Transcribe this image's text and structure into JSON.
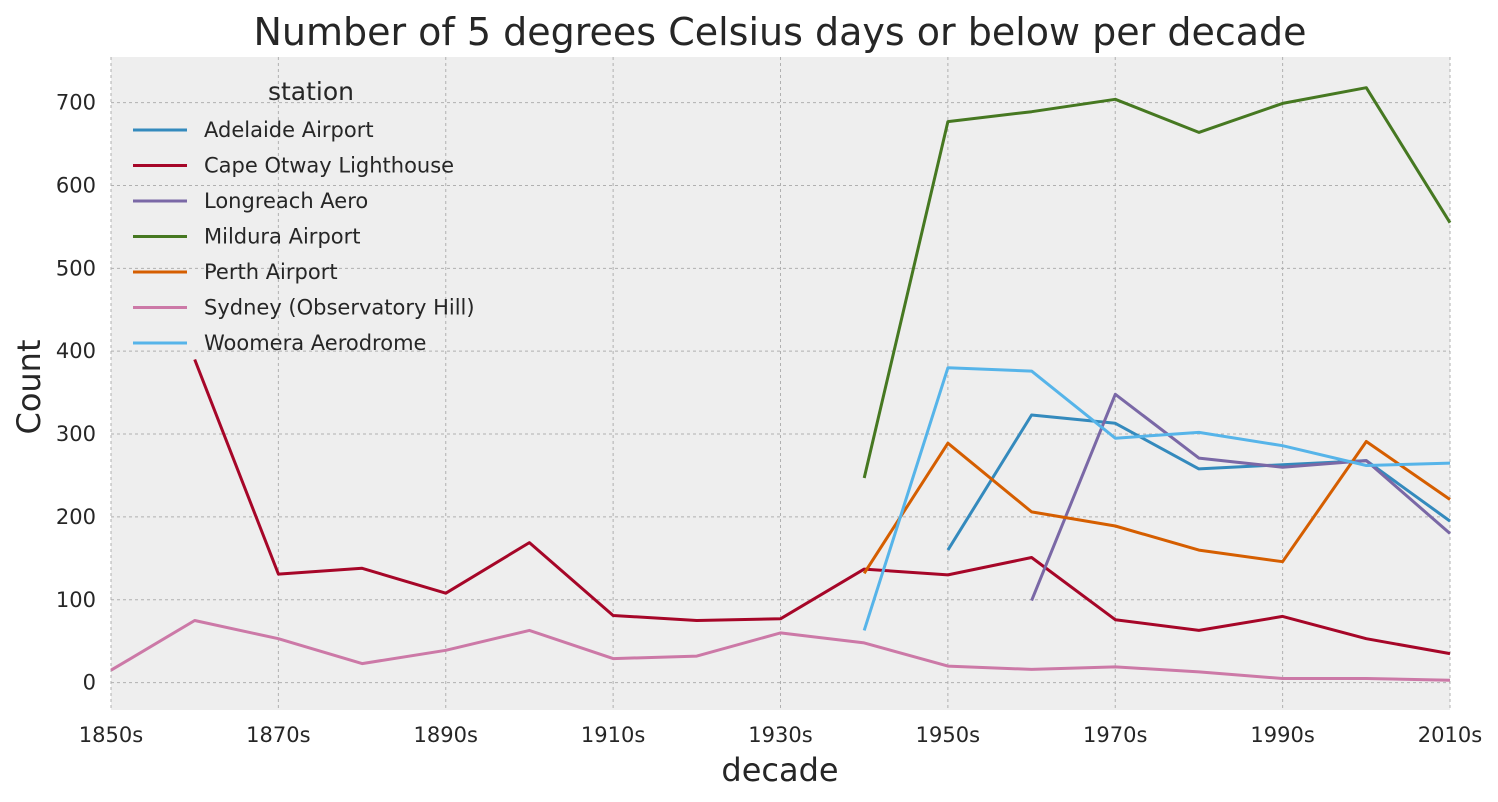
{
  "chart_data": {
    "type": "line",
    "title": "Number of 5 degrees Celsius days or below per decade",
    "xlabel": "decade",
    "ylabel": "Count",
    "x": [
      "1850s",
      "1860s",
      "1870s",
      "1880s",
      "1890s",
      "1900s",
      "1910s",
      "1920s",
      "1930s",
      "1940s",
      "1950s",
      "1960s",
      "1970s",
      "1980s",
      "1990s",
      "2000s",
      "2010s"
    ],
    "x_tick_labels": [
      "1850s",
      "1870s",
      "1890s",
      "1910s",
      "1930s",
      "1950s",
      "1970s",
      "1990s",
      "2010s"
    ],
    "y_ticks": [
      0,
      100,
      200,
      300,
      400,
      500,
      600,
      700
    ],
    "ylim": [
      -33,
      755
    ],
    "grid": true,
    "legend": {
      "title": "station",
      "position": "top-left"
    },
    "background_color": "#EEEEEE",
    "series": [
      {
        "name": "Adelaide Airport",
        "color": "#348ABD",
        "values": [
          null,
          null,
          null,
          null,
          null,
          null,
          null,
          null,
          null,
          null,
          160,
          323,
          313,
          258,
          263,
          268,
          195
        ]
      },
      {
        "name": "Cape Otway Lighthouse",
        "color": "#A60628",
        "values": [
          null,
          390,
          131,
          138,
          108,
          169,
          81,
          75,
          77,
          137,
          130,
          151,
          76,
          63,
          80,
          53,
          35
        ]
      },
      {
        "name": "Longreach Aero",
        "color": "#7A68A6",
        "values": [
          null,
          null,
          null,
          null,
          null,
          null,
          null,
          null,
          null,
          null,
          null,
          99,
          348,
          271,
          260,
          268,
          180
        ]
      },
      {
        "name": "Mildura Airport",
        "color": "#467821",
        "values": [
          null,
          null,
          null,
          null,
          null,
          null,
          null,
          null,
          null,
          247,
          677,
          689,
          704,
          664,
          699,
          718,
          555
        ]
      },
      {
        "name": "Perth Airport",
        "color": "#D55E00",
        "values": [
          null,
          null,
          null,
          null,
          null,
          null,
          null,
          null,
          null,
          132,
          289,
          206,
          189,
          160,
          146,
          291,
          221
        ]
      },
      {
        "name": "Sydney (Observatory Hill)",
        "color": "#CC79A7",
        "values": [
          15,
          75,
          53,
          23,
          39,
          63,
          29,
          32,
          60,
          48,
          20,
          16,
          19,
          13,
          5,
          5,
          3
        ]
      },
      {
        "name": "Woomera Aerodrome",
        "color": "#56B4E9",
        "values": [
          null,
          null,
          null,
          null,
          null,
          null,
          null,
          null,
          null,
          63,
          380,
          376,
          295,
          302,
          286,
          262,
          265
        ]
      }
    ]
  }
}
